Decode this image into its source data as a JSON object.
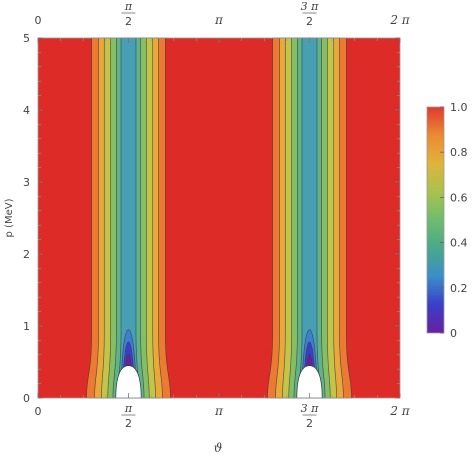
{
  "chart_data": {
    "type": "heatmap",
    "subtype": "contour",
    "xlabel": "ϑ",
    "ylabel": "p (MeV)",
    "xlim": [
      0,
      6.2832
    ],
    "ylim": [
      0,
      5.0
    ],
    "x_ticks": [
      {
        "value": 0,
        "label": "0",
        "kind": "plain"
      },
      {
        "value": 1.5708,
        "numerator": "π",
        "denominator": "2",
        "kind": "fraction"
      },
      {
        "value": 3.1416,
        "label": "π",
        "kind": "pi"
      },
      {
        "value": 4.7124,
        "numerator": "3 π",
        "denominator": "2",
        "kind": "fraction"
      },
      {
        "value": 6.2832,
        "label": "2 π",
        "kind": "pi"
      }
    ],
    "y_ticks": [
      {
        "value": 0,
        "label": "0"
      },
      {
        "value": 1,
        "label": "1"
      },
      {
        "value": 2,
        "label": "2"
      },
      {
        "value": 3,
        "label": "3"
      },
      {
        "value": 4,
        "label": "4"
      },
      {
        "value": 5,
        "label": "5"
      }
    ],
    "colorbar": {
      "range": [
        0,
        1.0
      ],
      "ticks": [
        {
          "value": 0,
          "label": "0"
        },
        {
          "value": 0.2,
          "label": "0.2"
        },
        {
          "value": 0.4,
          "label": "0.4"
        },
        {
          "value": 0.6,
          "label": "0.6"
        },
        {
          "value": 0.8,
          "label": "0.8"
        },
        {
          "value": 1.0,
          "label": "1.0"
        }
      ],
      "colors": [
        "#6a1fa0",
        "#3a3fc8",
        "#3b8ec9",
        "#4aa88a",
        "#6ebc6e",
        "#a9c24d",
        "#e0b43a",
        "#eb8a34",
        "#e03a2e"
      ]
    },
    "contour_levels": [
      0.1,
      0.2,
      0.3,
      0.4,
      0.5,
      0.6,
      0.7,
      0.8,
      0.9
    ],
    "level_colors": [
      "#6a1fa0",
      "#3c3fc6",
      "#3d7fd0",
      "#479fb3",
      "#5fb38a",
      "#86bf63",
      "#c3c44a",
      "#e9a93a",
      "#ec7a33",
      "#dd2c27"
    ],
    "valley_centers": [
      1.5708,
      4.7124
    ],
    "valley_half_widths_at_top": [
      0.64,
      0.52,
      0.42,
      0.31,
      0.21,
      0.13
    ],
    "valley_half_widths_at_bottom": [
      0.73,
      0.59,
      0.47,
      0.36,
      0.27,
      0.19,
      0.13,
      0.1,
      0.07
    ],
    "undefined_region": {
      "half_width": 0.22,
      "max_p": 0.45
    },
    "grid": false,
    "legend": "colorbar-right"
  }
}
